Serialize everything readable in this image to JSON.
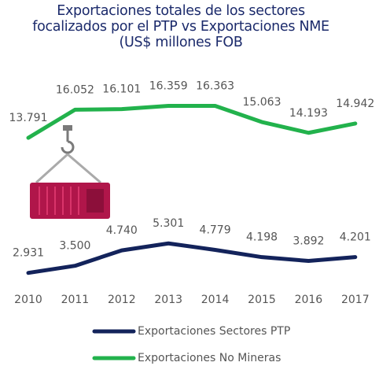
{
  "chart_data": {
    "type": "line",
    "title": "Exportaciones totales de los sectores focalizados por el PTP vs Exportaciones NME (US$ millones FOB",
    "categories": [
      "2010",
      "2011",
      "2012",
      "2013",
      "2014",
      "2015",
      "2016",
      "2017"
    ],
    "series": [
      {
        "name": "Exportaciones Sectores PTP",
        "color": "#13235b",
        "values": [
          2931,
          3500,
          4740,
          5301,
          4779,
          4198,
          3892,
          4201
        ],
        "value_labels": [
          "2.931",
          "3.500",
          "4.740",
          "5.301",
          "4.779",
          "4.198",
          "3.892",
          "4.201"
        ]
      },
      {
        "name": "Exportaciones No Mineras",
        "color": "#22b24c",
        "values": [
          13791,
          16052,
          16101,
          16359,
          16363,
          15063,
          14193,
          14942
        ],
        "value_labels": [
          "13.791",
          "16.052",
          "16.101",
          "16.359",
          "16.363",
          "15.063",
          "14.193",
          "14.942"
        ]
      }
    ]
  }
}
